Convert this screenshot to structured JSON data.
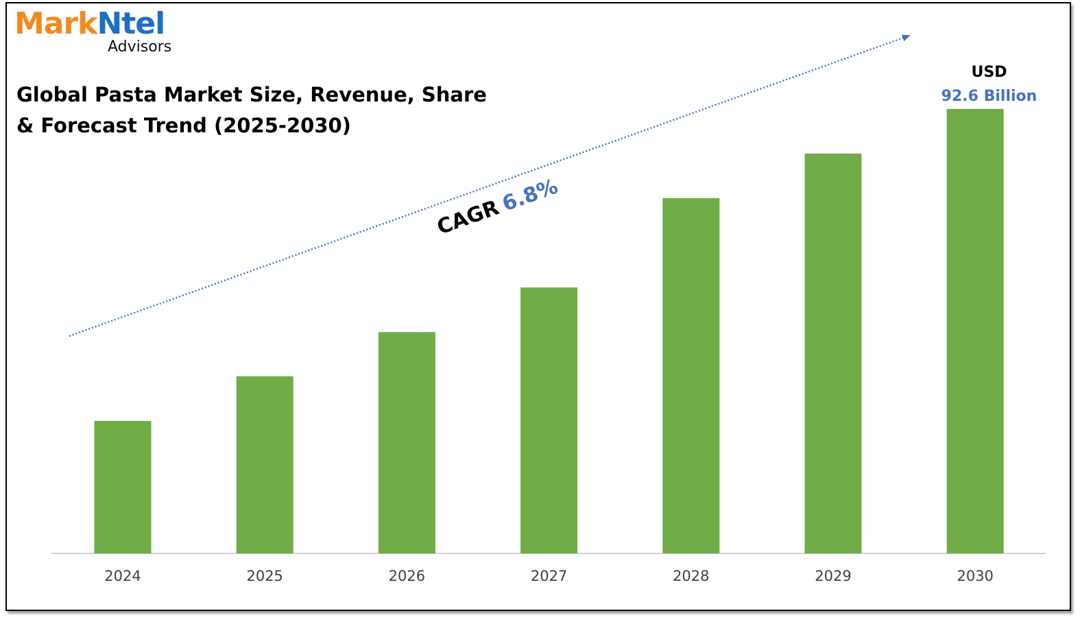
{
  "logo": {
    "part1": "Mark",
    "part2": "Ntel",
    "sub": "Advisors"
  },
  "title": "Global Pasta Market Size, Revenue, Share & Forecast Trend (2025-2030)",
  "callout": {
    "unit": "USD",
    "value": "92.6 Billion"
  },
  "cagr": {
    "label": "CAGR",
    "value": "6.8%"
  },
  "colors": {
    "bar": "#70ad47",
    "accent": "#4472c4",
    "logo_orange": "#f28a1e",
    "logo_blue": "#1f6ec6"
  },
  "chart_data": {
    "type": "bar",
    "title": "Global Pasta Market Size, Revenue, Share & Forecast Trend (2025-2030)",
    "categories": [
      "2024",
      "2025",
      "2026",
      "2027",
      "2028",
      "2029",
      "2030"
    ],
    "values": [
      27.6,
      36.9,
      46.1,
      55.4,
      74.0,
      83.3,
      92.6
    ],
    "unit": "USD Billion",
    "ylim": [
      0,
      100
    ],
    "grid": false,
    "legend": "none"
  }
}
